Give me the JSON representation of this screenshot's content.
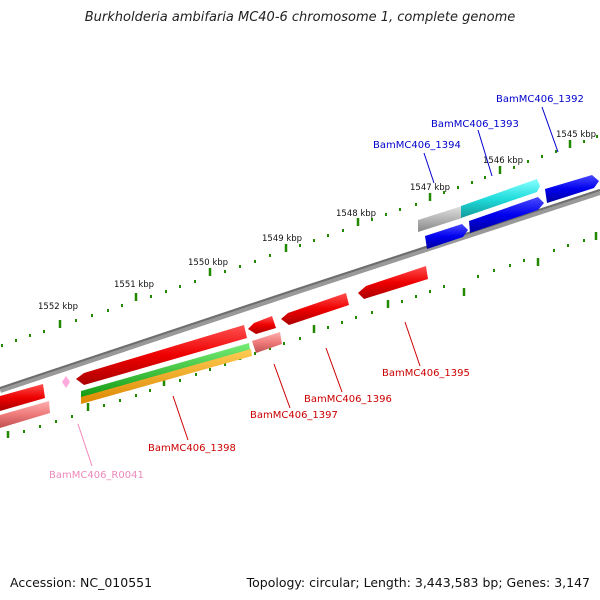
{
  "title": "Burkholderia ambifaria MC40-6 chromosome 1, complete genome",
  "footer": {
    "accession": "Accession: NC_010551",
    "summary": "Topology: circular; Length: 3,443,583 bp; Genes: 3,147"
  },
  "scale": {
    "labels": [
      "1545 kbp",
      "1546 kbp",
      "1547 kbp",
      "1548 kbp",
      "1549 kbp",
      "1550 kbp",
      "1551 kbp",
      "1552 kbp"
    ]
  },
  "genes": {
    "forward": [
      "BamMC406_1392",
      "BamMC406_1393",
      "BamMC406_1394"
    ],
    "reverse": [
      "BamMC406_1395",
      "BamMC406_1396",
      "BamMC406_1397",
      "BamMC406_1398"
    ],
    "rna": "BamMC406_R0041"
  },
  "colors": {
    "forward_label": "#0000cc",
    "reverse_label": "#cc0000",
    "rna_label": "#ee88bb",
    "tick": "#228800",
    "backbone": "#888888"
  }
}
